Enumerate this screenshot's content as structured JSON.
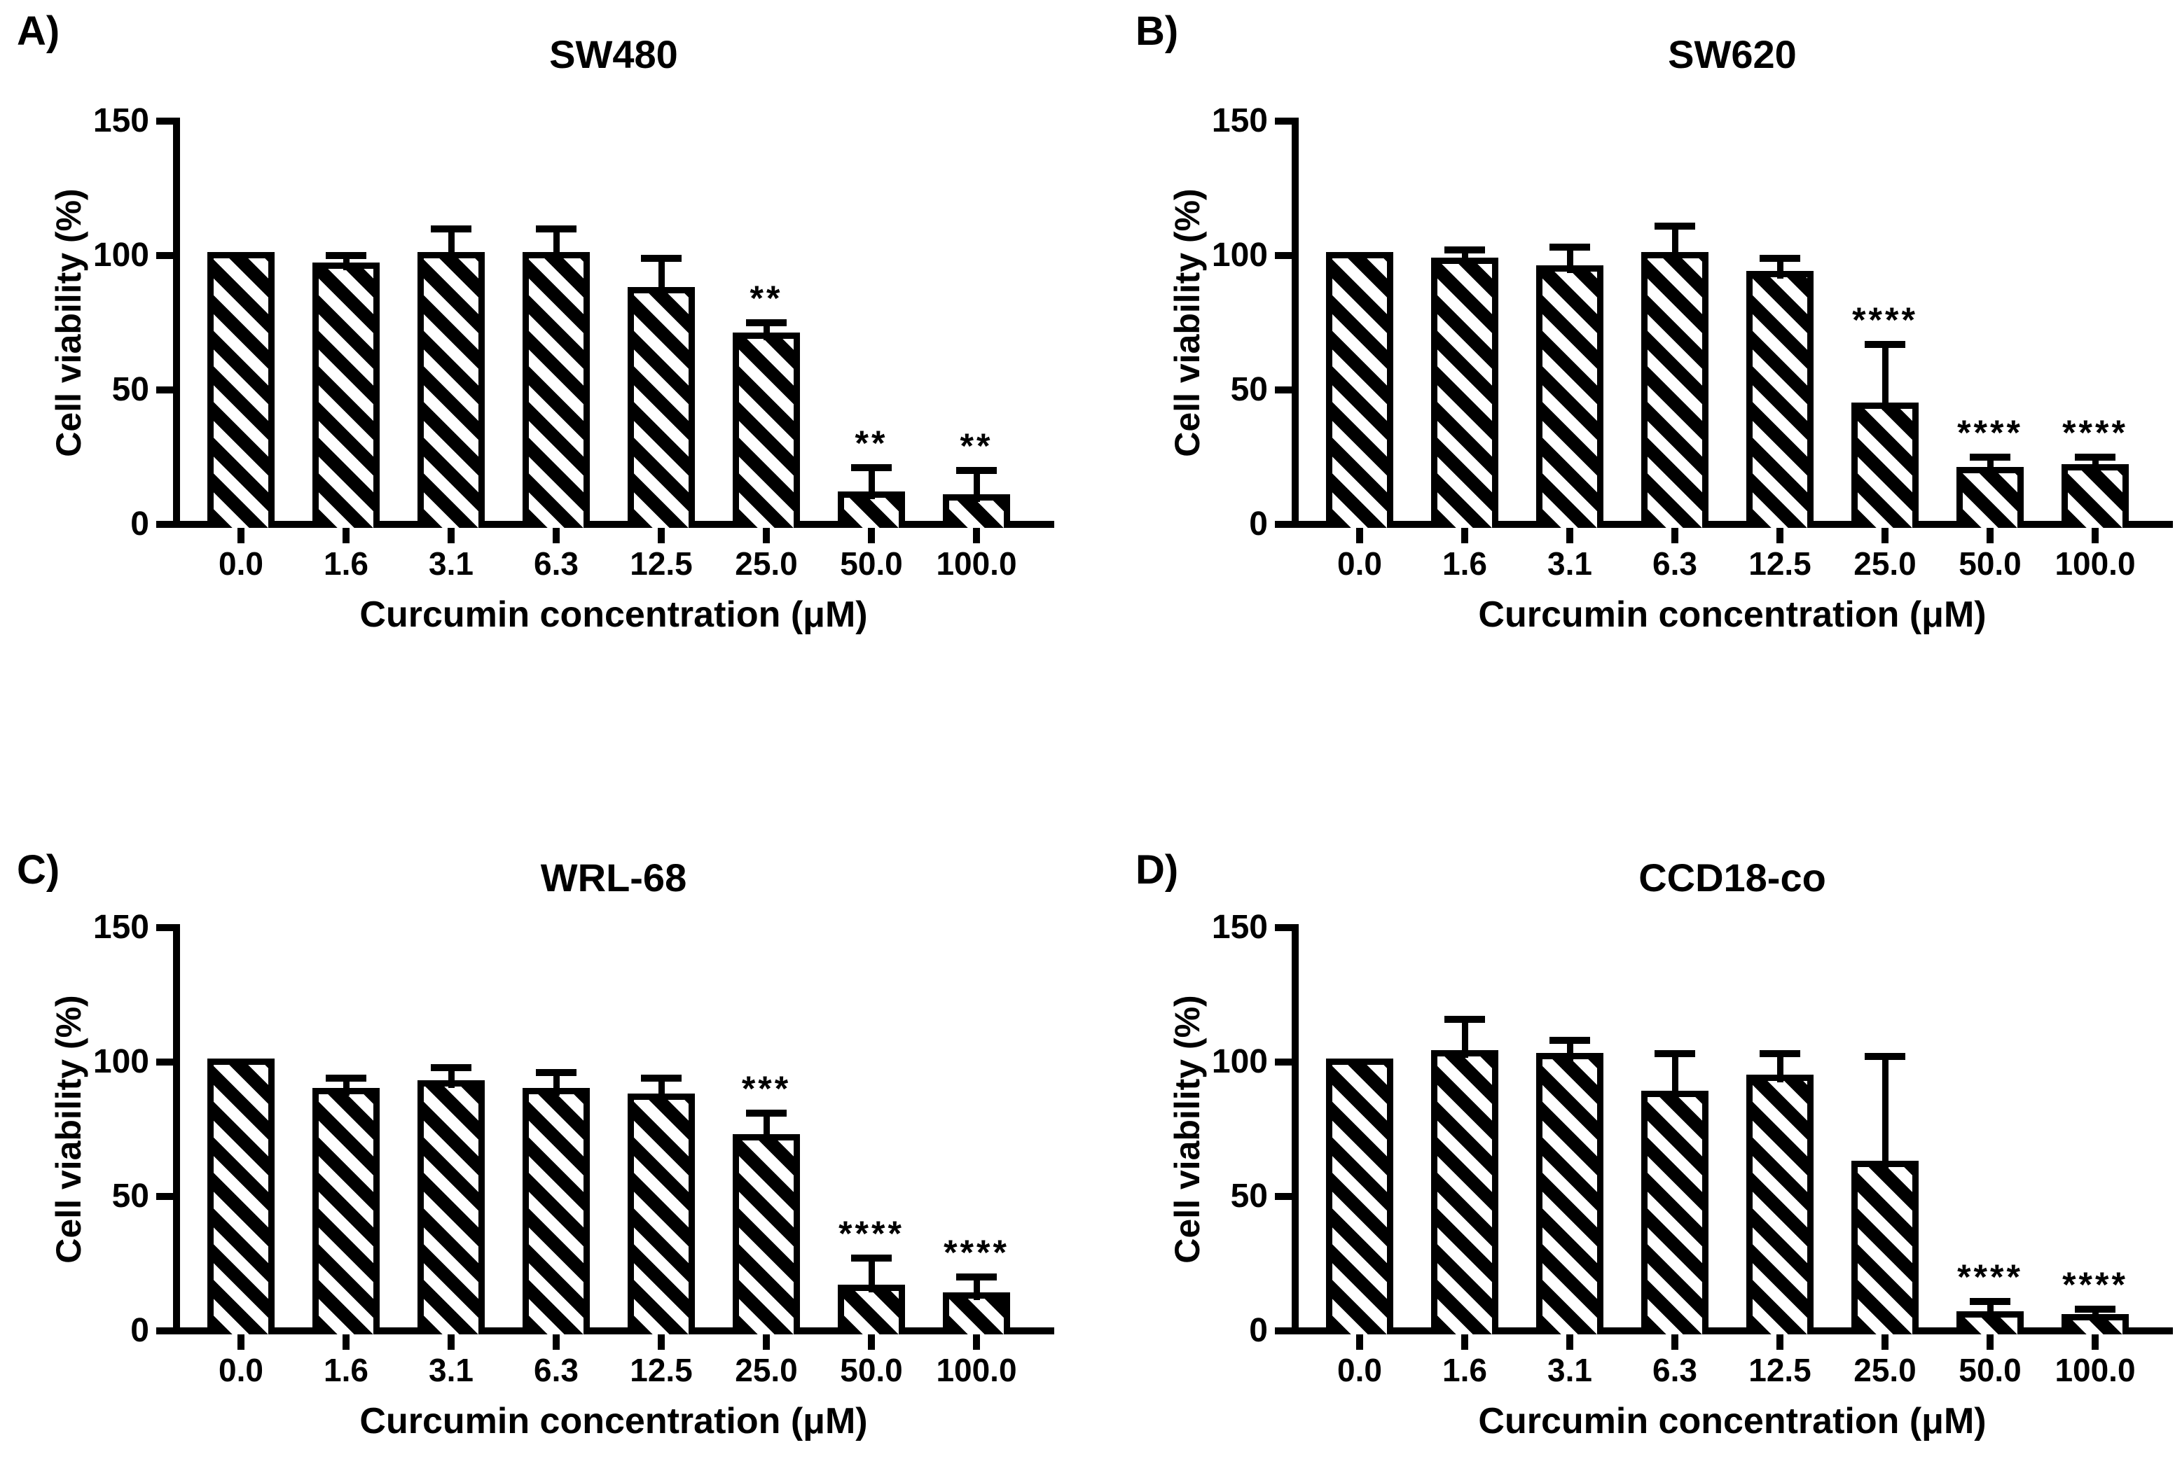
{
  "figure": {
    "background_color": "#ffffff",
    "foreground_color": "#000000",
    "y_axis_label": "Cell viability (%)",
    "x_axis_label": "Curcumin concentration (μM)",
    "y_tick_labels": [
      "0",
      "50",
      "100",
      "150"
    ],
    "bar_fill_style": "black-white diagonal hatch (\\)",
    "layout": "2x2 panel grid"
  },
  "chart_data": [
    {
      "type": "bar",
      "panel_label": "A)",
      "title": "SW480",
      "xlabel": "Curcumin concentration (μM)",
      "ylabel": "Cell viability (%)",
      "ylim": [
        0,
        150
      ],
      "yticks": [
        0,
        50,
        100,
        150
      ],
      "grid": false,
      "categories": [
        "0.0",
        "1.6",
        "3.1",
        "6.3",
        "12.5",
        "25.0",
        "50.0",
        "100.0"
      ],
      "values": [
        100,
        96,
        100,
        100,
        87,
        70,
        11,
        10
      ],
      "sd_upper": [
        0,
        4,
        10,
        10,
        12,
        5,
        10,
        10
      ],
      "significance": [
        "",
        "",
        "",
        "",
        "",
        "**",
        "**",
        "**"
      ]
    },
    {
      "type": "bar",
      "panel_label": "B)",
      "title": "SW620",
      "xlabel": "Curcumin concentration (μM)",
      "ylabel": "Cell viability (%)",
      "ylim": [
        0,
        150
      ],
      "yticks": [
        0,
        50,
        100,
        150
      ],
      "grid": false,
      "categories": [
        "0.0",
        "1.6",
        "3.1",
        "6.3",
        "12.5",
        "25.0",
        "50.0",
        "100.0"
      ],
      "values": [
        100,
        98,
        95,
        100,
        93,
        44,
        20,
        21
      ],
      "sd_upper": [
        0,
        4,
        8,
        11,
        6,
        23,
        5,
        4
      ],
      "significance": [
        "",
        "",
        "",
        "",
        "",
        "****",
        "****",
        "****"
      ]
    },
    {
      "type": "bar",
      "panel_label": "C)",
      "title": "WRL-68",
      "xlabel": "Curcumin concentration (μM)",
      "ylabel": "Cell viability (%)",
      "ylim": [
        0,
        150
      ],
      "yticks": [
        0,
        50,
        100,
        150
      ],
      "grid": false,
      "categories": [
        "0.0",
        "1.6",
        "3.1",
        "6.3",
        "12.5",
        "25.0",
        "50.0",
        "100.0"
      ],
      "values": [
        100,
        89,
        92,
        89,
        87,
        72,
        16,
        13
      ],
      "sd_upper": [
        0,
        5,
        6,
        7,
        7,
        9,
        11,
        7
      ],
      "significance": [
        "",
        "",
        "",
        "",
        "",
        "***",
        "****",
        "****"
      ]
    },
    {
      "type": "bar",
      "panel_label": "D)",
      "title": "CCD18-co",
      "xlabel": "Curcumin concentration (μM)",
      "ylabel": "Cell viability (%)",
      "ylim": [
        0,
        150
      ],
      "yticks": [
        0,
        50,
        100,
        150
      ],
      "grid": false,
      "categories": [
        "0.0",
        "1.6",
        "3.1",
        "6.3",
        "12.5",
        "25.0",
        "50.0",
        "100.0"
      ],
      "values": [
        100,
        103,
        102,
        88,
        94,
        62,
        6,
        5
      ],
      "sd_upper": [
        0,
        13,
        6,
        15,
        9,
        40,
        5,
        3
      ],
      "significance": [
        "",
        "",
        "",
        "",
        "",
        "",
        "****",
        "****"
      ]
    }
  ]
}
